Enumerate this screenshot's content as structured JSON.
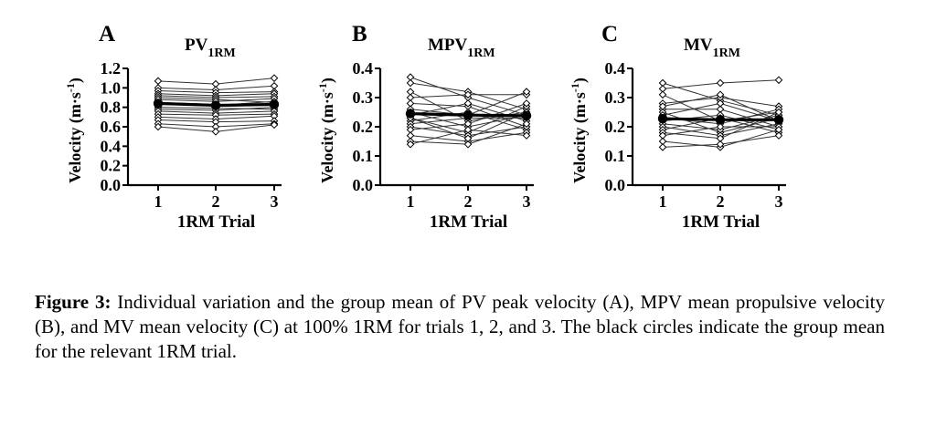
{
  "caption": {
    "label": "Figure 3:",
    "text": "Individual variation and the group mean of PV peak velocity (A), MPV mean propulsive velocity (B), and MV mean velocity (C) at 100% 1RM for trials 1, 2, and 3. The black circles indicate the group mean for the relevant 1RM trial."
  },
  "chart_data": [
    {
      "type": "line",
      "panel_letter": "A",
      "title_main": "PV",
      "title_sub": "1RM",
      "ylabel_main": "Velocity (m·s",
      "ylabel_sup": "-1",
      "ylabel_close": ")",
      "xlabel": "1RM Trial",
      "x": [
        1,
        2,
        3
      ],
      "xticks": [
        "1",
        "2",
        "3"
      ],
      "yticks": [
        "0.0",
        "0.2",
        "0.4",
        "0.6",
        "0.8",
        "1.0",
        "1.2"
      ],
      "ylim": [
        0,
        1.2
      ],
      "individuals": [
        [
          1.07,
          1.04,
          1.1
        ],
        [
          1.0,
          0.98,
          1.02
        ],
        [
          0.97,
          0.95,
          0.96
        ],
        [
          0.94,
          0.92,
          0.94
        ],
        [
          0.92,
          0.9,
          0.91
        ],
        [
          0.9,
          0.88,
          0.85
        ],
        [
          0.88,
          0.86,
          0.89
        ],
        [
          0.85,
          0.83,
          0.82
        ],
        [
          0.83,
          0.82,
          0.86
        ],
        [
          0.8,
          0.79,
          0.78
        ],
        [
          0.78,
          0.77,
          0.8
        ],
        [
          0.76,
          0.74,
          0.76
        ],
        [
          0.73,
          0.72,
          0.73
        ],
        [
          0.7,
          0.68,
          0.71
        ],
        [
          0.67,
          0.65,
          0.66
        ],
        [
          0.63,
          0.6,
          0.63
        ],
        [
          0.6,
          0.55,
          0.62
        ]
      ],
      "mean": [
        0.84,
        0.82,
        0.83
      ]
    },
    {
      "type": "line",
      "panel_letter": "B",
      "title_main": "MPV",
      "title_sub": "1RM",
      "ylabel_main": "Velocity (m·s",
      "ylabel_sup": "-1",
      "ylabel_close": ")",
      "xlabel": "1RM Trial",
      "x": [
        1,
        2,
        3
      ],
      "xticks": [
        "1",
        "2",
        "3"
      ],
      "yticks": [
        "0.0",
        "0.1",
        "0.2",
        "0.3",
        "0.4"
      ],
      "ylim": [
        0,
        0.4
      ],
      "individuals": [
        [
          0.37,
          0.3,
          0.24
        ],
        [
          0.35,
          0.32,
          0.26
        ],
        [
          0.32,
          0.22,
          0.25
        ],
        [
          0.3,
          0.31,
          0.31
        ],
        [
          0.28,
          0.27,
          0.2
        ],
        [
          0.26,
          0.24,
          0.32
        ],
        [
          0.25,
          0.2,
          0.24
        ],
        [
          0.24,
          0.28,
          0.22
        ],
        [
          0.23,
          0.18,
          0.27
        ],
        [
          0.22,
          0.25,
          0.19
        ],
        [
          0.21,
          0.23,
          0.23
        ],
        [
          0.2,
          0.17,
          0.2
        ],
        [
          0.19,
          0.21,
          0.28
        ],
        [
          0.17,
          0.15,
          0.18
        ],
        [
          0.15,
          0.14,
          0.21
        ],
        [
          0.14,
          0.19,
          0.17
        ],
        [
          0.23,
          0.16,
          0.25
        ]
      ],
      "mean": [
        0.245,
        0.24,
        0.238
      ]
    },
    {
      "type": "line",
      "panel_letter": "C",
      "title_main": "MV",
      "title_sub": "1RM",
      "ylabel_main": "Velocity (m·s",
      "ylabel_sup": "-1",
      "ylabel_close": ")",
      "xlabel": "1RM Trial",
      "x": [
        1,
        2,
        3
      ],
      "xticks": [
        "1",
        "2",
        "3"
      ],
      "yticks": [
        "0.0",
        "0.1",
        "0.2",
        "0.3",
        "0.4"
      ],
      "ylim": [
        0,
        0.4
      ],
      "individuals": [
        [
          0.35,
          0.29,
          0.24
        ],
        [
          0.33,
          0.35,
          0.36
        ],
        [
          0.31,
          0.22,
          0.25
        ],
        [
          0.28,
          0.3,
          0.27
        ],
        [
          0.26,
          0.26,
          0.2
        ],
        [
          0.25,
          0.18,
          0.23
        ],
        [
          0.24,
          0.28,
          0.22
        ],
        [
          0.23,
          0.21,
          0.26
        ],
        [
          0.22,
          0.24,
          0.19
        ],
        [
          0.21,
          0.19,
          0.24
        ],
        [
          0.2,
          0.17,
          0.21
        ],
        [
          0.19,
          0.23,
          0.18
        ],
        [
          0.18,
          0.16,
          0.25
        ],
        [
          0.17,
          0.2,
          0.2
        ],
        [
          0.15,
          0.13,
          0.19
        ],
        [
          0.13,
          0.14,
          0.17
        ],
        [
          0.27,
          0.31,
          0.22
        ]
      ],
      "mean": [
        0.228,
        0.224,
        0.224
      ]
    }
  ]
}
